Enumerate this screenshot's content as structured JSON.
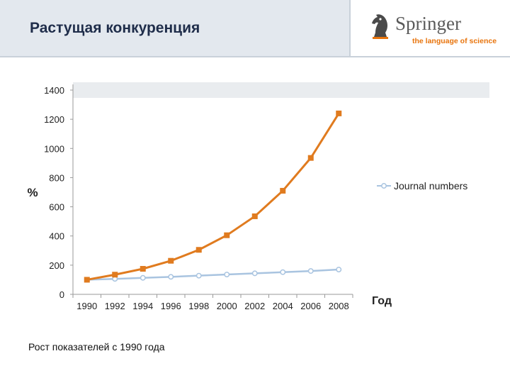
{
  "slide": {
    "title": "Растущая конкуренция",
    "footer": "Рост показателей с 1990 года"
  },
  "logo": {
    "brand": "Springer",
    "tagline": "the language of science",
    "icon": "knight-chess-piece-icon"
  },
  "colors": {
    "orange_series": "#e07b1f",
    "blue_series": "#a9c4e0",
    "logo_accent": "#e8740c"
  },
  "chart_data": {
    "type": "line",
    "ylabel": "%",
    "xlabel": "Год",
    "ylim": [
      0,
      1400
    ],
    "y_ticks": [
      0,
      200,
      400,
      600,
      800,
      1000,
      1200,
      1400
    ],
    "x": [
      1990,
      1992,
      1994,
      1996,
      1998,
      2000,
      2002,
      2004,
      2006,
      2008
    ],
    "x_tick_labels": [
      "1990",
      "1992",
      "1994",
      "1996",
      "1998",
      "2000",
      "2002",
      "2004",
      "2006",
      "2008"
    ],
    "grid": false,
    "legend_position": "right",
    "series": [
      {
        "name": "",
        "color": "#e07b1f",
        "marker": "square",
        "values": [
          100,
          135,
          175,
          230,
          305,
          405,
          535,
          710,
          935,
          1240
        ]
      },
      {
        "name": "Journal numbers",
        "color": "#a9c4e0",
        "marker": "circle",
        "values": [
          100,
          106,
          113,
          120,
          128,
          136,
          144,
          152,
          160,
          170
        ]
      }
    ]
  }
}
